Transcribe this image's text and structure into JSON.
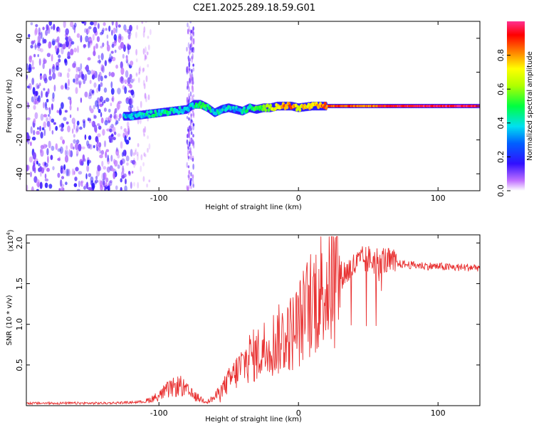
{
  "title": "C2E1.2025.289.18.59.G01",
  "chart_data": [
    {
      "type": "heatmap",
      "xlabel": "Height of straight line (km)",
      "ylabel": "Frequency (Hz)",
      "xlim": [
        -195,
        130
      ],
      "ylim": [
        -50,
        50
      ],
      "xticks": [
        -100,
        0,
        100
      ],
      "xtick_labels": [
        "-100",
        "0",
        "100"
      ],
      "yticks": [
        -40,
        -20,
        0,
        20,
        40
      ],
      "ytick_labels": [
        "-40",
        "-20",
        "0",
        "20",
        "40"
      ],
      "colorbar": {
        "label": "Normalized spectral amplitude",
        "range": [
          0,
          1
        ],
        "ticks": [
          0.0,
          0.2,
          0.4,
          0.6,
          0.8
        ],
        "tick_labels": [
          "0.0",
          "0.2",
          "0.4",
          "0.6",
          "0.8"
        ]
      },
      "ridge": {
        "x": [
          -120,
          -110,
          -100,
          -90,
          -80,
          -75,
          -70,
          -65,
          -60,
          -55,
          -50,
          -45,
          -40,
          -35,
          -30,
          -25,
          -20,
          -15,
          -10,
          -5,
          0,
          10,
          20,
          30,
          40,
          50,
          60,
          70,
          80,
          90,
          100,
          110,
          120,
          130
        ],
        "freq": [
          -6,
          -5,
          -4,
          -3,
          -2,
          1,
          1,
          -1,
          -4,
          -2,
          -1,
          -2,
          -3,
          -1,
          -2,
          -1,
          -1,
          0,
          0,
          0,
          -1,
          0,
          0,
          0,
          0,
          0,
          0,
          0,
          0,
          0,
          0,
          0,
          0,
          0
        ],
        "amplitude": [
          0.35,
          0.4,
          0.42,
          0.45,
          0.35,
          0.4,
          0.5,
          0.45,
          0.4,
          0.38,
          0.38,
          0.35,
          0.4,
          0.45,
          0.5,
          0.55,
          0.6,
          0.75,
          0.8,
          0.85,
          0.7,
          0.75,
          0.85,
          0.88,
          0.85,
          0.8,
          0.9,
          0.95,
          0.95,
          0.97,
          0.97,
          0.98,
          0.98,
          0.98
        ]
      }
    },
    {
      "type": "line",
      "xlabel": "Height of straight line (km)",
      "ylabel": "SNR (10 * v/v)",
      "multiplier_label": "(x10",
      "multiplier_exp": "4",
      "multiplier_close": ")",
      "xlim": [
        -195,
        130
      ],
      "ylim": [
        0,
        2.1
      ],
      "xticks": [
        -100,
        0,
        100
      ],
      "xtick_labels": [
        "-100",
        "0",
        "100"
      ],
      "yticks": [
        0.5,
        1.0,
        1.5,
        2.0
      ],
      "ytick_labels": [
        "0.5",
        "1.0",
        "1.5",
        "2.0"
      ],
      "series": [
        {
          "name": "SNR",
          "color": "#e83030",
          "x": [
            -195,
            -180,
            -160,
            -140,
            -120,
            -110,
            -100,
            -95,
            -90,
            -85,
            -80,
            -75,
            -70,
            -65,
            -60,
            -55,
            -50,
            -45,
            -40,
            -35,
            -30,
            -25,
            -20,
            -15,
            -10,
            -5,
            0,
            5,
            10,
            15,
            20,
            25,
            30,
            35,
            40,
            45,
            50,
            55,
            60,
            65,
            70,
            75,
            80,
            90,
            100,
            110,
            120,
            130
          ],
          "y": [
            0.03,
            0.03,
            0.03,
            0.03,
            0.04,
            0.05,
            0.12,
            0.18,
            0.22,
            0.25,
            0.18,
            0.12,
            0.08,
            0.05,
            0.1,
            0.2,
            0.3,
            0.4,
            0.5,
            0.6,
            0.62,
            0.7,
            0.75,
            0.8,
            0.85,
            0.9,
            1.0,
            1.15,
            1.3,
            1.4,
            1.5,
            1.55,
            1.6,
            1.65,
            1.72,
            1.78,
            1.8,
            1.78,
            1.8,
            1.76,
            1.74,
            1.74,
            1.73,
            1.72,
            1.71,
            1.7,
            1.7,
            1.7
          ]
        }
      ]
    }
  ]
}
